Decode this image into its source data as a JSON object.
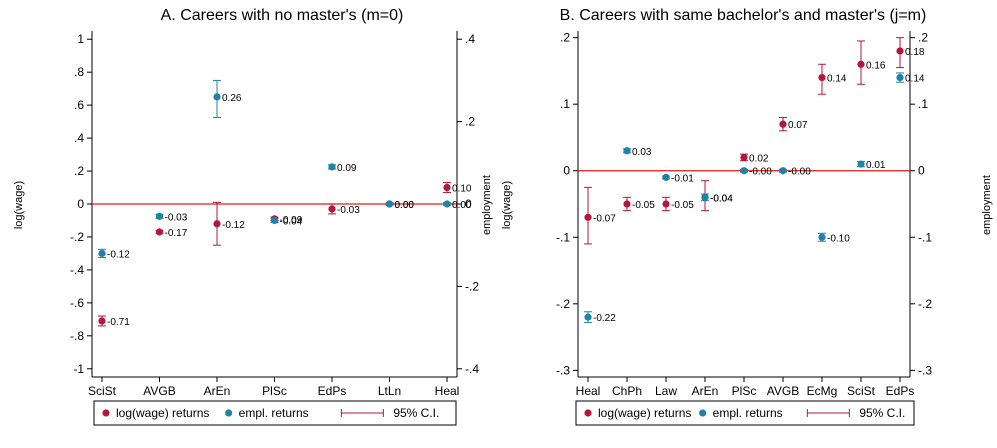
{
  "chart_data": [
    {
      "type": "dot-errorbar",
      "title": "A. Careers with no master's (m=0)",
      "ylabel_left": "log(wage)",
      "ylabel_right": "employment",
      "categories": [
        "SciSt",
        "AVGB",
        "ArEn",
        "PlSc",
        "EdPs",
        "LtLn",
        "Heal"
      ],
      "ylim_left": [
        -1.05,
        1.05
      ],
      "ylim_right": [
        -0.42,
        0.42
      ],
      "yticks_left": [
        -1,
        -0.8,
        -0.6,
        -0.4,
        -0.2,
        0,
        0.2,
        0.4,
        0.6,
        0.8,
        1
      ],
      "ytick_labels_left": [
        "-1",
        "-.8",
        "-.6",
        "-.4",
        "-.2",
        "0",
        ".2",
        ".4",
        ".6",
        ".8",
        "1"
      ],
      "yticks_right": [
        -0.4,
        -0.2,
        0,
        0.2,
        0.4
      ],
      "ytick_labels_right": [
        "-.4",
        "-.2",
        "0",
        ".2",
        ".4"
      ],
      "series": [
        {
          "name": "log(wage) returns",
          "axis": "left",
          "color": "#b5173a",
          "values": [
            -0.71,
            -0.17,
            -0.12,
            -0.09,
            -0.03,
            0.0,
            0.1
          ],
          "ci_low": [
            -0.74,
            -0.18,
            -0.25,
            -0.1,
            -0.06,
            -0.005,
            0.07
          ],
          "ci_high": [
            -0.68,
            -0.16,
            0.01,
            -0.08,
            0.0,
            0.005,
            0.13
          ],
          "labels": [
            "-0.71",
            "-0.17",
            "-0.12",
            "-0.09",
            "-0.03",
            "0.00",
            "0.10"
          ]
        },
        {
          "name": "empl. returns",
          "axis": "right",
          "color": "#1f83a8",
          "values": [
            -0.12,
            -0.03,
            0.26,
            -0.04,
            0.09,
            0.0,
            0.0
          ],
          "ci_low": [
            -0.13,
            -0.035,
            0.21,
            -0.045,
            0.085,
            -0.003,
            -0.003
          ],
          "ci_high": [
            -0.11,
            -0.025,
            0.3,
            -0.035,
            0.095,
            0.003,
            0.003
          ],
          "labels": [
            "-0.12",
            "-0.03",
            "0.26",
            "-0.04",
            "0.09",
            "0.00",
            "0.00"
          ]
        }
      ],
      "legend": {
        "items": [
          "log(wage) returns",
          "empl. returns",
          "95% C.I."
        ],
        "placement": "bottom"
      }
    },
    {
      "type": "dot-errorbar",
      "title": "B. Careers with same bachelor's and master's (j=m)",
      "ylabel_left": "log(wage)",
      "ylabel_right": "employment",
      "categories": [
        "Heal",
        "ChPh",
        "Law",
        "ArEn",
        "PlSc",
        "AVGB",
        "EcMg",
        "SciSt",
        "EdPs"
      ],
      "ylim_left": [
        -0.31,
        0.21
      ],
      "ylim_right": [
        -0.31,
        0.21
      ],
      "yticks_left": [
        -0.3,
        -0.2,
        -0.1,
        0,
        0.1,
        0.2
      ],
      "ytick_labels_left": [
        "-.3",
        "-.2",
        "-.1",
        "0",
        ".1",
        ".2"
      ],
      "yticks_right": [
        -0.3,
        -0.2,
        -0.1,
        0,
        0.1,
        0.2
      ],
      "ytick_labels_right": [
        "-.3",
        "-.2",
        "-.1",
        "0",
        ".1",
        ".2"
      ],
      "series": [
        {
          "name": "log(wage) returns",
          "axis": "left",
          "color": "#b5173a",
          "values": [
            -0.07,
            -0.05,
            -0.05,
            -0.04,
            0.02,
            0.07,
            0.14,
            0.16,
            0.18
          ],
          "ci_low": [
            -0.11,
            -0.06,
            -0.06,
            -0.06,
            0.015,
            0.06,
            0.115,
            0.13,
            0.155
          ],
          "ci_high": [
            -0.025,
            -0.04,
            -0.04,
            -0.015,
            0.025,
            0.08,
            0.16,
            0.195,
            0.2
          ],
          "labels": [
            "-0.07",
            "-0.05",
            "-0.05",
            "-0.04",
            "0.02",
            "0.07",
            "0.14",
            "0.16",
            "0.18"
          ]
        },
        {
          "name": "empl. returns",
          "axis": "right",
          "color": "#1f83a8",
          "values": [
            -0.22,
            0.03,
            -0.01,
            -0.04,
            0.0,
            0.0,
            -0.1,
            0.01,
            0.14
          ],
          "ci_low": [
            -0.228,
            0.027,
            -0.012,
            -0.045,
            -0.002,
            -0.002,
            -0.106,
            0.006,
            0.133
          ],
          "ci_high": [
            -0.212,
            0.033,
            -0.008,
            -0.035,
            0.002,
            0.002,
            -0.094,
            0.014,
            0.147
          ],
          "labels": [
            "-0.22",
            "0.03",
            "-0.01",
            "-0.04",
            "-0.00",
            "-0.00",
            "-0.10",
            "0.01",
            "0.14"
          ]
        }
      ],
      "legend": {
        "items": [
          "log(wage) returns",
          "empl. returns",
          "95% C.I."
        ],
        "placement": "bottom"
      }
    }
  ]
}
